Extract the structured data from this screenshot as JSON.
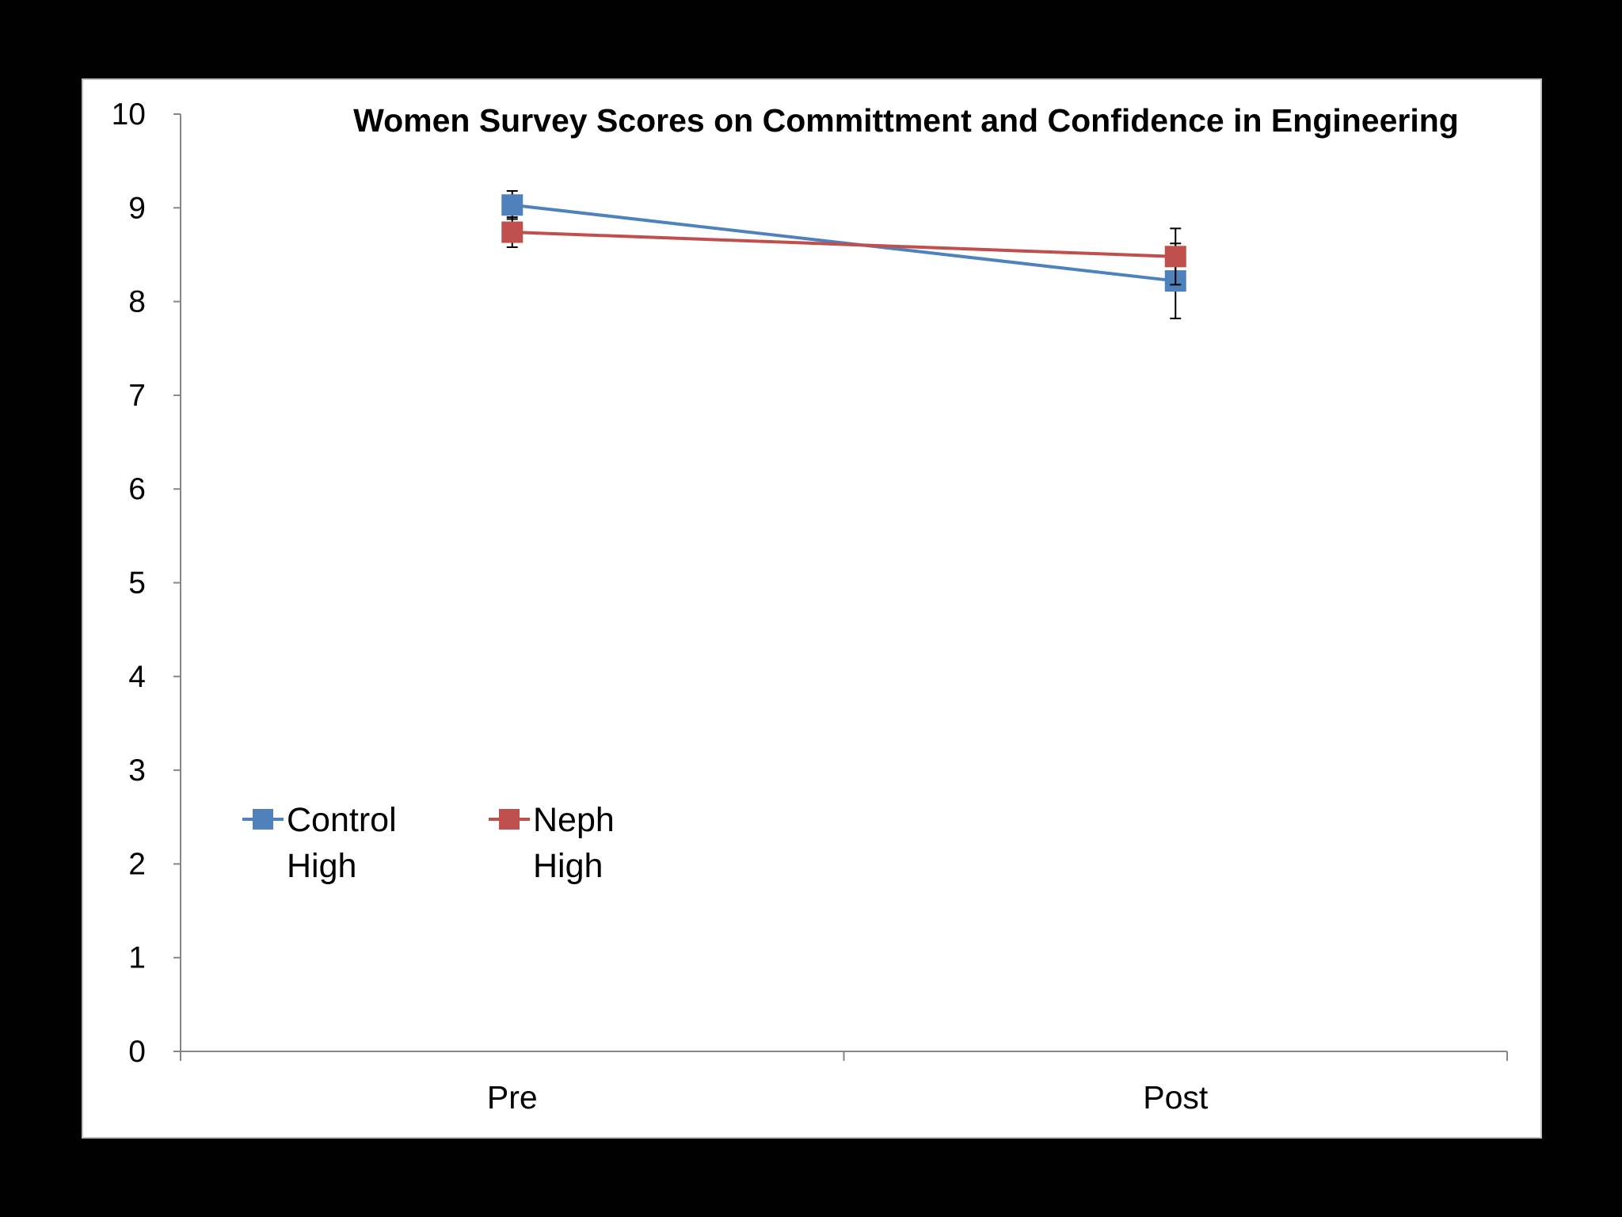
{
  "chart_data": {
    "type": "line",
    "title": "Women Survey Scores on Committment  and Confidence in Engineering",
    "xlabel": "",
    "ylabel": "",
    "categories": [
      "Pre",
      "Post"
    ],
    "ylim": [
      0,
      10
    ],
    "yticks": [
      0,
      1,
      2,
      3,
      4,
      5,
      6,
      7,
      8,
      9,
      10
    ],
    "grid": false,
    "legend_position": "bottom-left",
    "series": [
      {
        "name": "Control High",
        "legend_lines": [
          "Control",
          "High"
        ],
        "color": "#4F81BD",
        "marker": "square",
        "values": [
          9.03,
          8.22
        ],
        "errors": [
          0.15,
          0.4
        ]
      },
      {
        "name": "Neph High",
        "legend_lines": [
          "Neph",
          "High"
        ],
        "color": "#C0504D",
        "marker": "square",
        "values": [
          8.74,
          8.48
        ],
        "errors": [
          0.16,
          0.3
        ]
      }
    ]
  }
}
